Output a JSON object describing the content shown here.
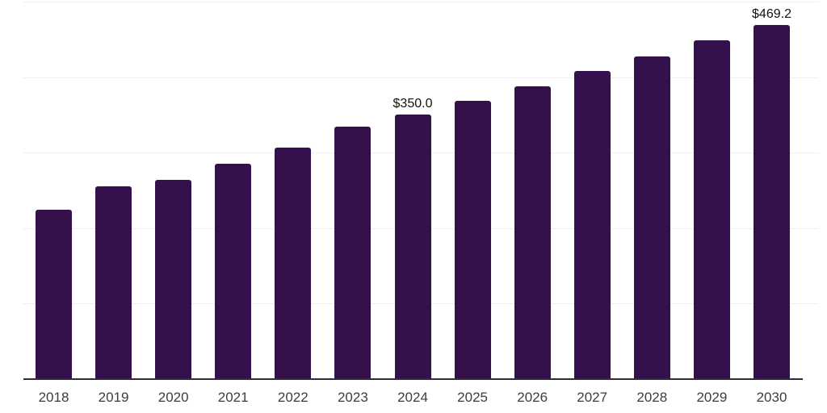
{
  "chart_data": {
    "type": "bar",
    "title": "",
    "xlabel": "",
    "ylabel": "",
    "categories": [
      "2018",
      "2019",
      "2020",
      "2021",
      "2022",
      "2023",
      "2024",
      "2025",
      "2026",
      "2027",
      "2028",
      "2029",
      "2030"
    ],
    "values": [
      224,
      255,
      264,
      285,
      307,
      334,
      350.0,
      369,
      388,
      408,
      427,
      449,
      469.2
    ],
    "data_labels": {
      "2024": "$350.0",
      "2030": "$469.2"
    },
    "ylim": [
      0,
      500
    ],
    "grid_step": 100,
    "grid": true,
    "legend": false,
    "y_axis_tick_labels_visible": false,
    "bar_color": "#34114C",
    "gridline_color": "#efefef",
    "axis_line_color": "#2f2f2f",
    "x_label_color": "#3d3d3d",
    "data_label_color": "#111111"
  }
}
